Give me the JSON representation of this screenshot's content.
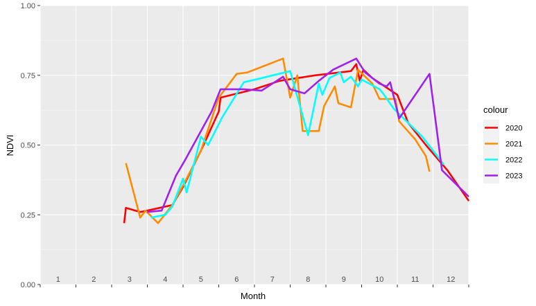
{
  "chart_data": {
    "type": "line",
    "title": "",
    "xlabel": "Month",
    "ylabel": "NDVI",
    "xlim": [
      0.5,
      12.5
    ],
    "ylim": [
      0,
      1
    ],
    "x_tick_labels": [
      "1",
      "2",
      "3",
      "4",
      "5",
      "6",
      "7",
      "8",
      "9",
      "10",
      "11",
      "12"
    ],
    "y_ticks": [
      0,
      0.25,
      0.5,
      0.75,
      1
    ],
    "y_tick_labels": [
      "0.00",
      "0.25",
      "0.50",
      "0.75",
      "1.00"
    ],
    "grid": true,
    "legend_title": "colour",
    "legend_position": "right",
    "series": [
      {
        "name": "2020",
        "color": "#FF0000",
        "points": [
          [
            2.85,
            0.22
          ],
          [
            2.9,
            0.275
          ],
          [
            3.3,
            0.26
          ],
          [
            3.5,
            0.265
          ],
          [
            4.2,
            0.285
          ],
          [
            4.5,
            0.35
          ],
          [
            5.0,
            0.48
          ],
          [
            5.5,
            0.62
          ],
          [
            5.55,
            0.67
          ],
          [
            6.5,
            0.7
          ],
          [
            7.2,
            0.73
          ],
          [
            8.2,
            0.75
          ],
          [
            9.2,
            0.765
          ],
          [
            9.35,
            0.79
          ],
          [
            9.45,
            0.73
          ],
          [
            9.55,
            0.77
          ],
          [
            9.8,
            0.74
          ],
          [
            10.5,
            0.68
          ],
          [
            10.8,
            0.58
          ],
          [
            11.3,
            0.5
          ],
          [
            11.9,
            0.41
          ],
          [
            12.5,
            0.3
          ]
        ]
      },
      {
        "name": "2021",
        "color": "#FF8C00",
        "points": [
          [
            2.9,
            0.435
          ],
          [
            3.3,
            0.24
          ],
          [
            3.45,
            0.265
          ],
          [
            3.8,
            0.22
          ],
          [
            4.2,
            0.285
          ],
          [
            4.5,
            0.355
          ],
          [
            5.0,
            0.48
          ],
          [
            5.5,
            0.67
          ],
          [
            6.0,
            0.755
          ],
          [
            6.3,
            0.76
          ],
          [
            7.3,
            0.81
          ],
          [
            7.5,
            0.67
          ],
          [
            7.7,
            0.75
          ],
          [
            7.85,
            0.55
          ],
          [
            8.3,
            0.55
          ],
          [
            8.45,
            0.64
          ],
          [
            8.75,
            0.71
          ],
          [
            8.85,
            0.65
          ],
          [
            9.2,
            0.635
          ],
          [
            9.4,
            0.77
          ],
          [
            9.8,
            0.72
          ],
          [
            10.0,
            0.665
          ],
          [
            10.45,
            0.665
          ],
          [
            10.55,
            0.585
          ],
          [
            11.0,
            0.52
          ],
          [
            11.3,
            0.46
          ],
          [
            11.4,
            0.405
          ]
        ]
      },
      {
        "name": "2022",
        "color": "#00FFFF",
        "points": [
          [
            3.6,
            0.24
          ],
          [
            4.0,
            0.25
          ],
          [
            4.2,
            0.28
          ],
          [
            4.5,
            0.38
          ],
          [
            4.6,
            0.33
          ],
          [
            5.0,
            0.53
          ],
          [
            5.2,
            0.5
          ],
          [
            5.6,
            0.6
          ],
          [
            6.2,
            0.725
          ],
          [
            6.7,
            0.74
          ],
          [
            7.5,
            0.765
          ],
          [
            8.0,
            0.535
          ],
          [
            8.3,
            0.72
          ],
          [
            8.4,
            0.68
          ],
          [
            8.6,
            0.74
          ],
          [
            8.9,
            0.76
          ],
          [
            9.0,
            0.725
          ],
          [
            9.2,
            0.745
          ],
          [
            9.4,
            0.71
          ],
          [
            9.5,
            0.735
          ],
          [
            10.0,
            0.7
          ],
          [
            10.1,
            0.685
          ],
          [
            10.4,
            0.63
          ],
          [
            10.8,
            0.58
          ],
          [
            11.2,
            0.53
          ],
          [
            11.5,
            0.48
          ],
          [
            11.8,
            0.43
          ]
        ]
      },
      {
        "name": "2023",
        "color": "#A020F0",
        "points": [
          [
            3.5,
            0.26
          ],
          [
            3.9,
            0.265
          ],
          [
            4.3,
            0.39
          ],
          [
            4.55,
            0.445
          ],
          [
            5.3,
            0.62
          ],
          [
            5.55,
            0.7
          ],
          [
            6.2,
            0.7
          ],
          [
            6.7,
            0.695
          ],
          [
            7.3,
            0.745
          ],
          [
            7.5,
            0.7
          ],
          [
            7.9,
            0.685
          ],
          [
            8.3,
            0.73
          ],
          [
            8.7,
            0.77
          ],
          [
            9.35,
            0.81
          ],
          [
            9.5,
            0.78
          ],
          [
            9.6,
            0.76
          ],
          [
            10.0,
            0.72
          ],
          [
            10.2,
            0.71
          ],
          [
            10.3,
            0.725
          ],
          [
            10.55,
            0.595
          ],
          [
            11.4,
            0.755
          ],
          [
            11.75,
            0.41
          ],
          [
            12.5,
            0.315
          ]
        ]
      }
    ]
  }
}
